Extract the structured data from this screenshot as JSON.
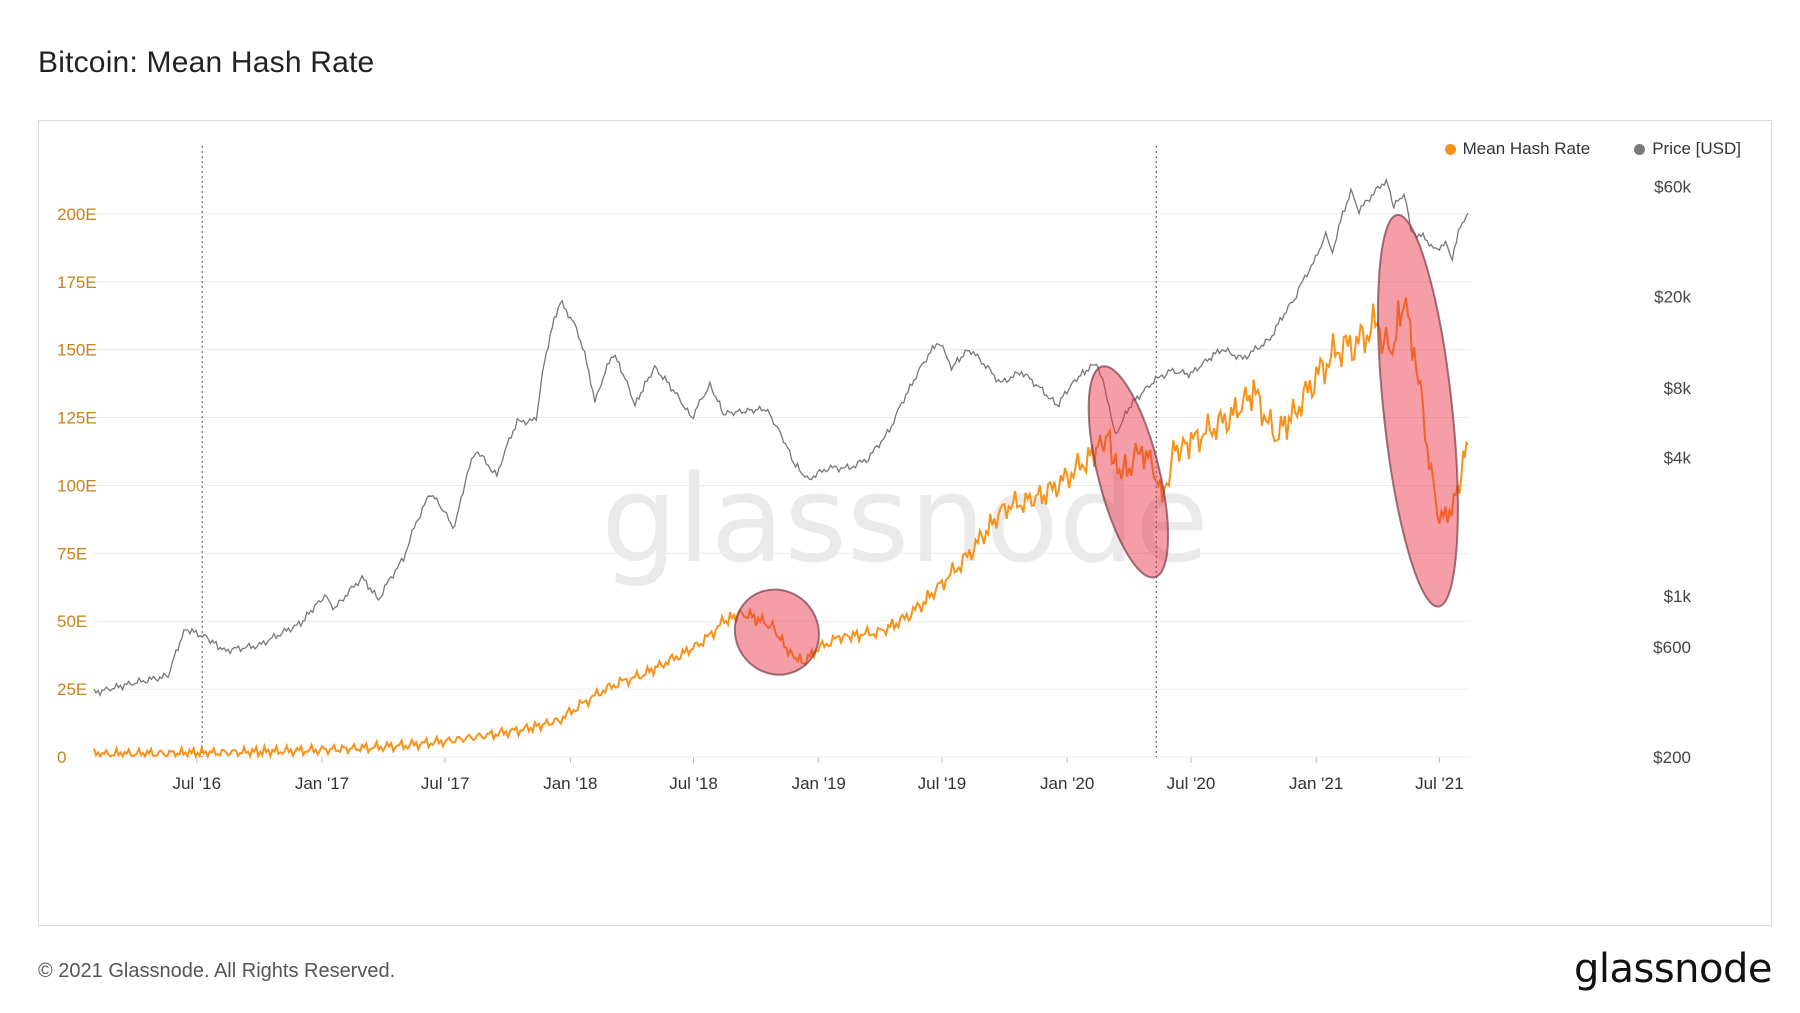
{
  "page": {
    "title": "Bitcoin: Mean Hash Rate",
    "footer_copyright": "© 2021 Glassnode. All Rights Reserved.",
    "footer_logo": "glassnode",
    "watermark": "glassnode"
  },
  "chart_data": {
    "type": "line",
    "title": "Bitcoin: Mean Hash Rate",
    "legend_position": "top-right",
    "grid": true,
    "x_range": [
      "2016-02-01",
      "2021-08-15"
    ],
    "x_ticks": [
      {
        "label": "Jul '16",
        "date": "2016-07-01"
      },
      {
        "label": "Jan '17",
        "date": "2017-01-01"
      },
      {
        "label": "Jul '17",
        "date": "2017-07-01"
      },
      {
        "label": "Jan '18",
        "date": "2018-01-01"
      },
      {
        "label": "Jul '18",
        "date": "2018-07-01"
      },
      {
        "label": "Jan '19",
        "date": "2019-01-01"
      },
      {
        "label": "Jul '19",
        "date": "2019-07-01"
      },
      {
        "label": "Jan '20",
        "date": "2020-01-01"
      },
      {
        "label": "Jul '20",
        "date": "2020-07-01"
      },
      {
        "label": "Jan '21",
        "date": "2021-01-01"
      },
      {
        "label": "Jul '21",
        "date": "2021-07-01"
      }
    ],
    "y_left": {
      "scale": "linear",
      "range": [
        0,
        225
      ],
      "color": "#c8811a",
      "ticks": [
        {
          "label": "0",
          "value": 0
        },
        {
          "label": "25E",
          "value": 25
        },
        {
          "label": "50E",
          "value": 50
        },
        {
          "label": "75E",
          "value": 75
        },
        {
          "label": "100E",
          "value": 100
        },
        {
          "label": "125E",
          "value": 125
        },
        {
          "label": "150E",
          "value": 150
        },
        {
          "label": "175E",
          "value": 175
        },
        {
          "label": "200E",
          "value": 200
        }
      ]
    },
    "y_right": {
      "scale": "log",
      "range": [
        200,
        90000
      ],
      "color": "#444444",
      "ticks": [
        {
          "label": "$200",
          "value": 200
        },
        {
          "label": "$600",
          "value": 600
        },
        {
          "label": "$1k",
          "value": 1000
        },
        {
          "label": "$4k",
          "value": 4000
        },
        {
          "label": "$8k",
          "value": 8000
        },
        {
          "label": "$20k",
          "value": 20000
        },
        {
          "label": "$60k",
          "value": 60000
        }
      ]
    },
    "event_lines": [
      "2016-07-09",
      "2020-05-11"
    ],
    "highlights": [
      {
        "start": "2018-09-01",
        "end": "2018-12-31",
        "y_low": 30,
        "y_high": 62
      },
      {
        "start": "2020-02-15",
        "end": "2020-05-15",
        "y_low": 65,
        "y_high": 145
      },
      {
        "start": "2021-04-10",
        "end": "2021-07-20",
        "y_low": 55,
        "y_high": 200
      }
    ],
    "series": [
      {
        "name": "Mean Hash Rate",
        "axis": "left",
        "color": "#f7931a",
        "points": [
          [
            "2016-02-01",
            1.0
          ],
          [
            "2016-05-01",
            1.3
          ],
          [
            "2016-08-01",
            1.6
          ],
          [
            "2016-11-01",
            2.1
          ],
          [
            "2017-01-01",
            2.6
          ],
          [
            "2017-03-01",
            3.3
          ],
          [
            "2017-05-01",
            4.2
          ],
          [
            "2017-07-01",
            5.8
          ],
          [
            "2017-09-01",
            8.0
          ],
          [
            "2017-11-01",
            10.5
          ],
          [
            "2017-12-15",
            13.5
          ],
          [
            "2018-01-15",
            19.0
          ],
          [
            "2018-02-15",
            24.0
          ],
          [
            "2018-03-15",
            27.5
          ],
          [
            "2018-04-15",
            30.0
          ],
          [
            "2018-05-15",
            34.0
          ],
          [
            "2018-06-15",
            38.0
          ],
          [
            "2018-07-15",
            42.5
          ],
          [
            "2018-08-15",
            50.0
          ],
          [
            "2018-09-10",
            53.0
          ],
          [
            "2018-10-01",
            51.0
          ],
          [
            "2018-10-25",
            48.0
          ],
          [
            "2018-11-20",
            38.0
          ],
          [
            "2018-12-10",
            35.0
          ],
          [
            "2018-12-31",
            40.0
          ],
          [
            "2019-01-31",
            44.0
          ],
          [
            "2019-03-01",
            45.0
          ],
          [
            "2019-04-01",
            46.0
          ],
          [
            "2019-05-01",
            50.0
          ],
          [
            "2019-06-01",
            56.0
          ],
          [
            "2019-07-01",
            64.0
          ],
          [
            "2019-08-01",
            72.0
          ],
          [
            "2019-09-01",
            82.0
          ],
          [
            "2019-10-01",
            92.0
          ],
          [
            "2019-11-01",
            94.0
          ],
          [
            "2019-12-01",
            97.0
          ],
          [
            "2020-01-01",
            103.0
          ],
          [
            "2020-02-01",
            110.0
          ],
          [
            "2020-03-01",
            118.0
          ],
          [
            "2020-03-15",
            105.0
          ],
          [
            "2020-04-01",
            107.0
          ],
          [
            "2020-04-20",
            113.0
          ],
          [
            "2020-05-05",
            108.0
          ],
          [
            "2020-05-20",
            95.0
          ],
          [
            "2020-06-05",
            112.0
          ],
          [
            "2020-07-01",
            116.0
          ],
          [
            "2020-08-01",
            121.0
          ],
          [
            "2020-09-01",
            126.0
          ],
          [
            "2020-10-01",
            135.0
          ],
          [
            "2020-11-01",
            118.0
          ],
          [
            "2020-12-01",
            127.0
          ],
          [
            "2021-01-01",
            140.0
          ],
          [
            "2021-02-01",
            150.0
          ],
          [
            "2021-03-01",
            152.0
          ],
          [
            "2021-04-01",
            160.0
          ],
          [
            "2021-04-20",
            148.0
          ],
          [
            "2021-05-10",
            168.0
          ],
          [
            "2021-05-25",
            150.0
          ],
          [
            "2021-06-10",
            120.0
          ],
          [
            "2021-06-28",
            90.0
          ],
          [
            "2021-07-10",
            88.0
          ],
          [
            "2021-07-25",
            95.0
          ],
          [
            "2021-08-05",
            107.0
          ],
          [
            "2021-08-12",
            115.0
          ]
        ]
      },
      {
        "name": "Price [USD]",
        "axis": "right",
        "color": "#777777",
        "points": [
          [
            "2016-02-01",
            380
          ],
          [
            "2016-04-01",
            420
          ],
          [
            "2016-05-20",
            450
          ],
          [
            "2016-06-15",
            720
          ],
          [
            "2016-07-15",
            660
          ],
          [
            "2016-08-10",
            580
          ],
          [
            "2016-10-01",
            610
          ],
          [
            "2016-12-01",
            760
          ],
          [
            "2017-01-05",
            1000
          ],
          [
            "2017-01-20",
            880
          ],
          [
            "2017-03-01",
            1200
          ],
          [
            "2017-03-25",
            960
          ],
          [
            "2017-05-01",
            1450
          ],
          [
            "2017-06-10",
            2800
          ],
          [
            "2017-07-15",
            1950
          ],
          [
            "2017-08-15",
            4300
          ],
          [
            "2017-09-15",
            3300
          ],
          [
            "2017-10-15",
            5700
          ],
          [
            "2017-11-12",
            5800
          ],
          [
            "2017-12-17",
            19000
          ],
          [
            "2018-01-10",
            14500
          ],
          [
            "2018-02-06",
            6900
          ],
          [
            "2018-03-05",
            11300
          ],
          [
            "2018-04-06",
            6700
          ],
          [
            "2018-05-05",
            9800
          ],
          [
            "2018-06-28",
            5900
          ],
          [
            "2018-07-25",
            8200
          ],
          [
            "2018-08-14",
            6200
          ],
          [
            "2018-10-15",
            6500
          ],
          [
            "2018-11-25",
            3800
          ],
          [
            "2018-12-15",
            3200
          ],
          [
            "2019-01-15",
            3600
          ],
          [
            "2019-02-15",
            3600
          ],
          [
            "2019-03-15",
            3950
          ],
          [
            "2019-04-15",
            5200
          ],
          [
            "2019-05-15",
            8000
          ],
          [
            "2019-06-26",
            12800
          ],
          [
            "2019-07-15",
            9800
          ],
          [
            "2019-08-10",
            11800
          ],
          [
            "2019-09-25",
            8400
          ],
          [
            "2019-10-26",
            9400
          ],
          [
            "2019-12-17",
            6700
          ],
          [
            "2020-01-15",
            8800
          ],
          [
            "2020-02-13",
            10300
          ],
          [
            "2020-03-12",
            4900
          ],
          [
            "2020-04-01",
            6600
          ],
          [
            "2020-05-10",
            8700
          ],
          [
            "2020-06-01",
            9500
          ],
          [
            "2020-07-01",
            9200
          ],
          [
            "2020-08-15",
            11800
          ],
          [
            "2020-09-15",
            10700
          ],
          [
            "2020-10-25",
            13000
          ],
          [
            "2020-11-30",
            19500
          ],
          [
            "2020-12-31",
            29000
          ],
          [
            "2021-01-15",
            37000
          ],
          [
            "2021-01-25",
            31000
          ],
          [
            "2021-02-21",
            57000
          ],
          [
            "2021-03-05",
            47000
          ],
          [
            "2021-04-14",
            64000
          ],
          [
            "2021-04-25",
            49000
          ],
          [
            "2021-05-10",
            56000
          ],
          [
            "2021-05-20",
            38000
          ],
          [
            "2021-06-10",
            36000
          ],
          [
            "2021-06-22",
            32000
          ],
          [
            "2021-07-10",
            33500
          ],
          [
            "2021-07-20",
            29800
          ],
          [
            "2021-08-01",
            40000
          ],
          [
            "2021-08-12",
            46000
          ]
        ]
      }
    ]
  }
}
